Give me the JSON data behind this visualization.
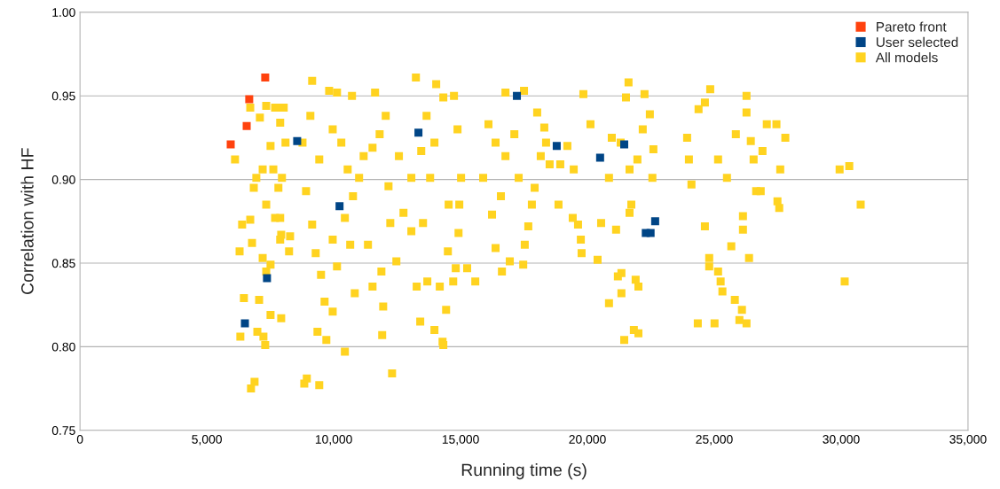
{
  "chart_data": {
    "type": "scatter",
    "xlabel": "Running time (s)",
    "ylabel": "Correlation with HF",
    "xlim": [
      0,
      35000
    ],
    "ylim": [
      0.75,
      1.0
    ],
    "xticks": [
      {
        "value": 0,
        "label": "0"
      },
      {
        "value": 5000,
        "label": "5,000"
      },
      {
        "value": 10000,
        "label": "10,000"
      },
      {
        "value": 15000,
        "label": "15,000"
      },
      {
        "value": 20000,
        "label": "20,000"
      },
      {
        "value": 25000,
        "label": "25,000"
      },
      {
        "value": 30000,
        "label": "30,000"
      },
      {
        "value": 35000,
        "label": "35,000"
      }
    ],
    "yticks": [
      {
        "value": 0.75,
        "label": "0.75"
      },
      {
        "value": 0.8,
        "label": "0.80"
      },
      {
        "value": 0.85,
        "label": "0.85"
      },
      {
        "value": 0.9,
        "label": "0.90"
      },
      {
        "value": 0.95,
        "label": "0.95"
      },
      {
        "value": 1.0,
        "label": "1.00"
      }
    ],
    "grid": "y",
    "legend": "top right",
    "marker": "square",
    "series": [
      {
        "name": "Pareto front",
        "color": "#ff420e",
        "x": [
          5940,
          6570,
          6670,
          7300
        ],
        "values": [
          0.921,
          0.932,
          0.948,
          0.961
        ]
      },
      {
        "name": "User selected",
        "color": "#004586",
        "x": [
          6500,
          7370,
          8560,
          10230,
          13340,
          17220,
          18790,
          20500,
          21450,
          22300,
          22490,
          22670
        ],
        "values": [
          0.814,
          0.841,
          0.923,
          0.884,
          0.928,
          0.95,
          0.92,
          0.913,
          0.921,
          0.868,
          0.868,
          0.875
        ]
      },
      {
        "name": "All models",
        "color": "#ffd320",
        "x": [
          6110,
          6390,
          6290,
          6460,
          6320,
          6740,
          6880,
          6990,
          7230,
          7300,
          7510,
          7060,
          6780,
          6710,
          6850,
          6710,
          7090,
          7340,
          7690,
          7890,
          7510,
          7200,
          6950,
          7340,
          7690,
          7890,
          7510,
          7790,
          8030,
          8100,
          7960,
          7820,
          7890,
          7930,
          8280,
          8240,
          7930,
          7200,
          7340,
          7620,
          9150,
          8940,
          8840,
          9430,
          9360,
          9710,
          10440,
          9820,
          10130,
          10720,
          11630,
          9960,
          8770,
          8910,
          9150,
          9290,
          9500,
          9640,
          9960,
          10130,
          10440,
          10760,
          11000,
          11180,
          11530,
          11810,
          12050,
          12230,
          11880,
          11950,
          11910,
          12300,
          11530,
          11350,
          10830,
          10550,
          10300,
          9430,
          9080,
          9960,
          10650,
          12570,
          12750,
          12470,
          12160,
          13240,
          13270,
          13410,
          13690,
          13970,
          14290,
          14320,
          14180,
          14430,
          14710,
          14810,
          14880,
          14320,
          14040,
          14740,
          13660,
          13060,
          13060,
          13520,
          13800,
          14530,
          14920,
          15020,
          14950,
          15260,
          15580,
          14500,
          13970,
          13450,
          16770,
          17500,
          18020,
          16100,
          15890,
          16240,
          16380,
          16630,
          16940,
          17470,
          17530,
          17810,
          18160,
          18370,
          18510,
          18860,
          18300,
          17120,
          17290,
          16590,
          16770,
          17670,
          17920,
          16380,
          19840,
          19210,
          19460,
          18930,
          19420,
          19630,
          19740,
          19770,
          20400,
          20540,
          20850,
          21130,
          21340,
          21620,
          21520,
          22250,
          22460,
          21660,
          21730,
          21900,
          22010,
          21830,
          22010,
          21450,
          21340,
          21970,
          22180,
          22560,
          20960,
          20120,
          20850,
          21310,
          22600,
          21200,
          21660,
          24840,
          24380,
          24630,
          23930,
          24000,
          24100,
          24630,
          24800,
          24800,
          25150,
          25250,
          25320,
          25670,
          26090,
          25990,
          25810,
          26270,
          24350,
          25010,
          26270,
          26270,
          26440,
          26550,
          26650,
          26830,
          27070,
          26900,
          25850,
          25500,
          25150,
          26130,
          26130,
          26370,
          27450,
          27800,
          27560,
          27490,
          27600,
          29940,
          30320,
          30140,
          30770
        ],
        "values": [
          0.912,
          0.873,
          0.857,
          0.829,
          0.806,
          0.775,
          0.779,
          0.809,
          0.806,
          0.801,
          0.819,
          0.828,
          0.862,
          0.876,
          0.895,
          0.943,
          0.937,
          0.944,
          0.943,
          0.934,
          0.92,
          0.906,
          0.901,
          0.885,
          0.877,
          0.864,
          0.849,
          0.943,
          0.943,
          0.922,
          0.901,
          0.895,
          0.877,
          0.867,
          0.866,
          0.857,
          0.817,
          0.853,
          0.845,
          0.906,
          0.959,
          0.781,
          0.778,
          0.777,
          0.809,
          0.804,
          0.797,
          0.953,
          0.952,
          0.95,
          0.952,
          0.93,
          0.922,
          0.893,
          0.873,
          0.856,
          0.843,
          0.827,
          0.821,
          0.848,
          0.877,
          0.89,
          0.901,
          0.914,
          0.919,
          0.927,
          0.938,
          0.874,
          0.845,
          0.824,
          0.807,
          0.784,
          0.836,
          0.861,
          0.832,
          0.906,
          0.922,
          0.912,
          0.938,
          0.864,
          0.861,
          0.914,
          0.88,
          0.851,
          0.896,
          0.961,
          0.836,
          0.815,
          0.839,
          0.81,
          0.803,
          0.801,
          0.836,
          0.822,
          0.839,
          0.847,
          0.93,
          0.949,
          0.957,
          0.95,
          0.938,
          0.901,
          0.869,
          0.874,
          0.901,
          0.885,
          0.868,
          0.901,
          0.885,
          0.847,
          0.839,
          0.857,
          0.922,
          0.917,
          0.952,
          0.953,
          0.94,
          0.933,
          0.901,
          0.879,
          0.859,
          0.845,
          0.851,
          0.849,
          0.861,
          0.885,
          0.914,
          0.922,
          0.909,
          0.885,
          0.931,
          0.927,
          0.901,
          0.89,
          0.914,
          0.872,
          0.895,
          0.922,
          0.951,
          0.92,
          0.906,
          0.909,
          0.877,
          0.873,
          0.864,
          0.856,
          0.852,
          0.874,
          0.826,
          0.87,
          0.844,
          0.958,
          0.949,
          0.951,
          0.939,
          0.906,
          0.885,
          0.84,
          0.836,
          0.81,
          0.808,
          0.804,
          0.832,
          0.912,
          0.93,
          0.901,
          0.925,
          0.933,
          0.901,
          0.922,
          0.918,
          0.842,
          0.88,
          0.954,
          0.942,
          0.946,
          0.925,
          0.912,
          0.897,
          0.872,
          0.853,
          0.848,
          0.845,
          0.839,
          0.833,
          0.86,
          0.822,
          0.816,
          0.828,
          0.814,
          0.814,
          0.814,
          0.95,
          0.94,
          0.923,
          0.912,
          0.893,
          0.893,
          0.933,
          0.917,
          0.927,
          0.901,
          0.912,
          0.878,
          0.87,
          0.853,
          0.933,
          0.925,
          0.883,
          0.887,
          0.906,
          0.906,
          0.908,
          0.839,
          0.885
        ]
      }
    ]
  }
}
